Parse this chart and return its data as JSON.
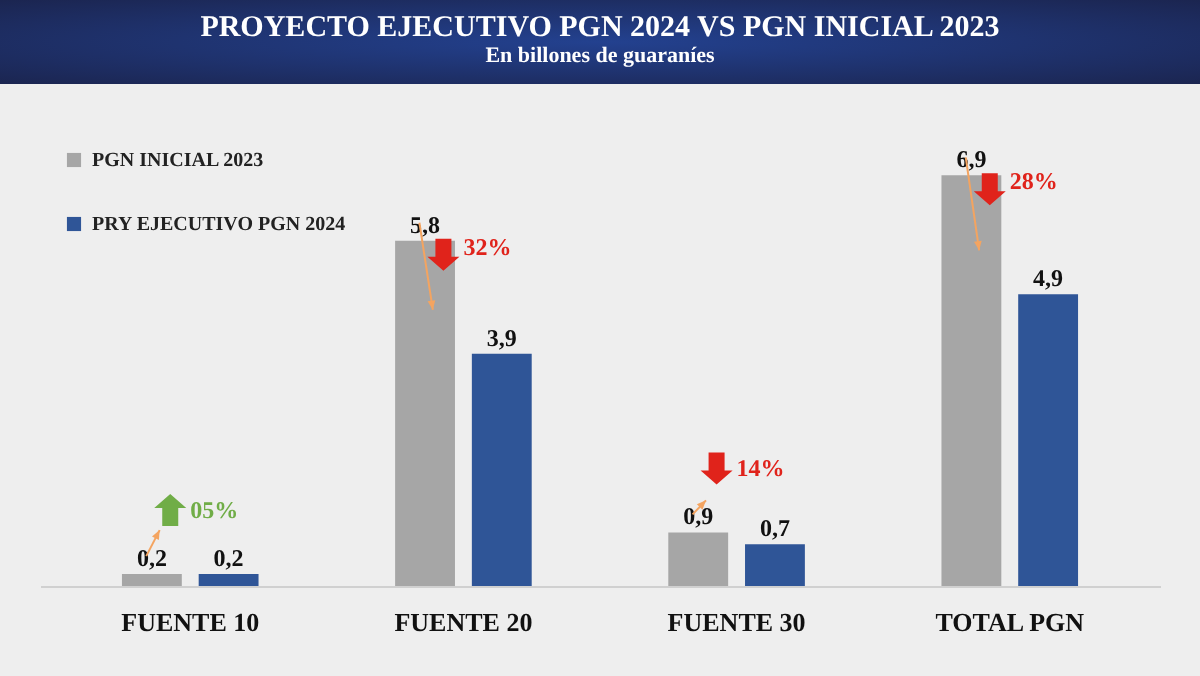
{
  "chart_data": {
    "type": "bar",
    "title": "PROYECTO EJECUTIVO PGN 2024 VS PGN INICIAL 2023",
    "subtitle": "En billones de guaraníes",
    "categories": [
      "FUENTE 10",
      "FUENTE 20",
      "FUENTE 30",
      "TOTAL PGN"
    ],
    "series": [
      {
        "name": "PGN INICIAL 2023",
        "color": "#a6a6a6",
        "values": [
          0.2,
          5.8,
          0.9,
          6.9
        ],
        "value_labels": [
          "0,2",
          "5,8",
          "0,9",
          "6,9"
        ]
      },
      {
        "name": "PRY EJECUTIVO PGN 2024",
        "color": "#2f5597",
        "values": [
          0.2,
          3.9,
          0.7,
          4.9
        ],
        "value_labels": [
          "0,2",
          "3,9",
          "0,7",
          "4,9"
        ]
      }
    ],
    "annotations": [
      "05%",
      "32%",
      "14%",
      "28%"
    ],
    "legend": "top left",
    "grid": false
  }
}
